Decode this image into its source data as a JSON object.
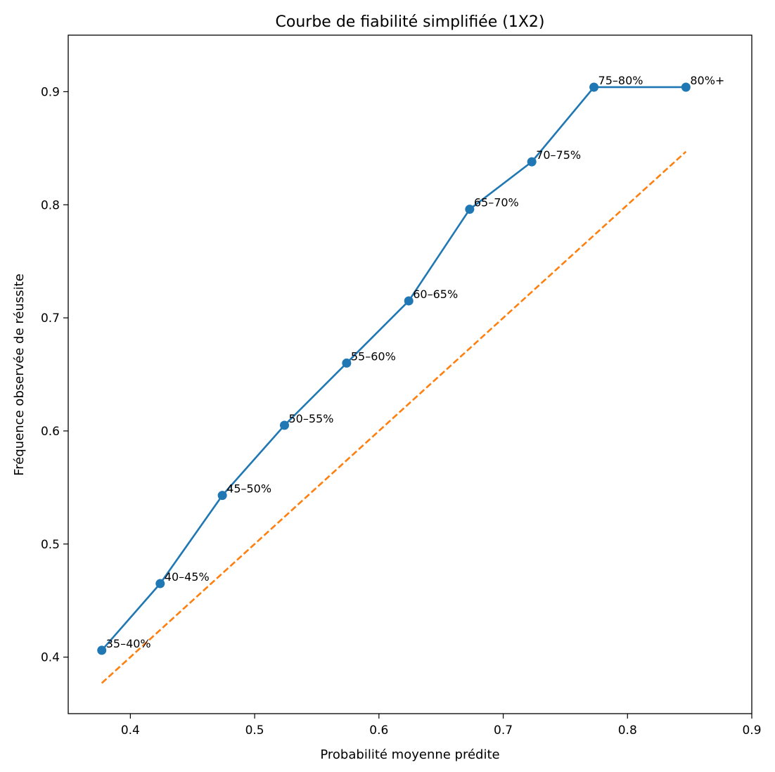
{
  "chart_data": {
    "type": "line",
    "title": "Courbe de fiabilité simplifiée (1X2)",
    "xlabel": "Probabilité moyenne prédite",
    "ylabel": "Fréquence observée de réussite",
    "xlim": [
      0.35,
      0.9
    ],
    "ylim": [
      0.35,
      0.95
    ],
    "xticks": [
      0.4,
      0.5,
      0.6,
      0.7,
      0.8,
      0.9
    ],
    "yticks": [
      0.4,
      0.5,
      0.6,
      0.7,
      0.8,
      0.9
    ],
    "xtick_labels": [
      "0.4",
      "0.5",
      "0.6",
      "0.7",
      "0.8",
      "0.9"
    ],
    "ytick_labels": [
      "0.4",
      "0.5",
      "0.6",
      "0.7",
      "0.8",
      "0.9"
    ],
    "grid": false,
    "series": [
      {
        "color": "#1f77b4",
        "style": "solid",
        "marker": "circle",
        "x": [
          0.377,
          0.424,
          0.474,
          0.524,
          0.574,
          0.624,
          0.673,
          0.723,
          0.773,
          0.847
        ],
        "y": [
          0.406,
          0.465,
          0.543,
          0.605,
          0.66,
          0.715,
          0.796,
          0.838,
          0.904,
          0.904
        ],
        "labels": [
          "35–40%",
          "40–45%",
          "45–50%",
          "50–55%",
          "55–60%",
          "60–65%",
          "65–70%",
          "70–75%",
          "75–80%",
          "80%+"
        ]
      },
      {
        "color": "#ff7f0e",
        "style": "dashed",
        "marker": "none",
        "x": [
          0.377,
          0.847
        ],
        "y": [
          0.377,
          0.847
        ]
      }
    ]
  }
}
